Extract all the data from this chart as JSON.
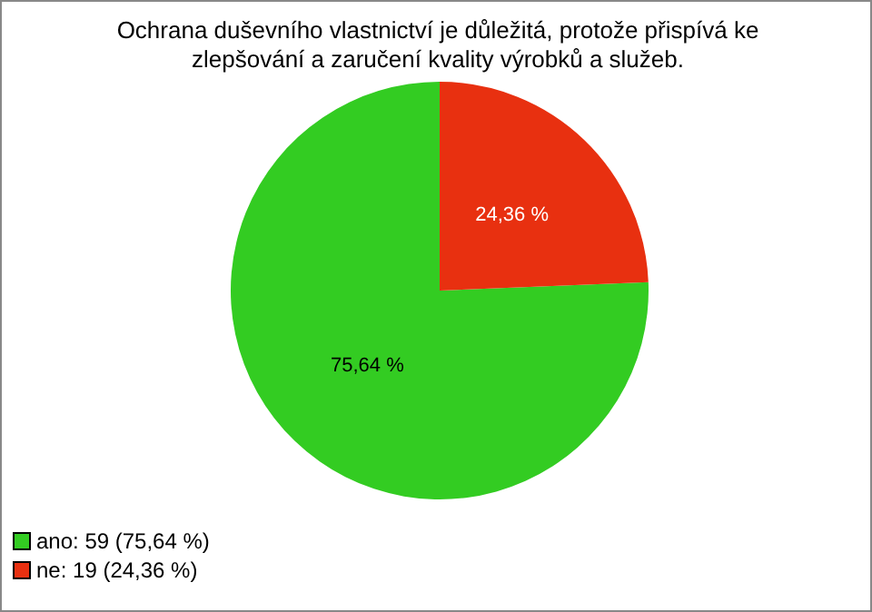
{
  "chart_data": {
    "type": "pie",
    "title": "Ochrana duševního vlastnictví je důležitá, protože přispívá ke zlepšování a zaručení kvality výrobků a služeb.",
    "categories": [
      "ano: 59 (75,64 %)",
      "ne: 19 (24,36 %)"
    ],
    "values": [
      75.64,
      24.36
    ],
    "colors": [
      "#33cc22",
      "#e83010"
    ],
    "value_labels": [
      "75,64 %",
      "24,36 %"
    ],
    "legend": "bottom left"
  }
}
